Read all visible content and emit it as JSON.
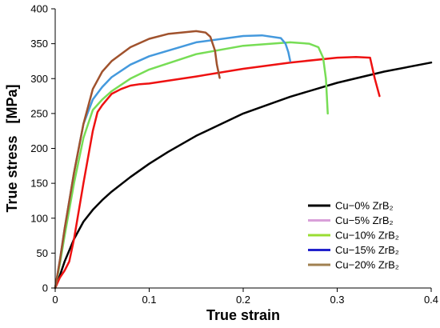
{
  "chart_data": {
    "type": "line",
    "title": "",
    "xlabel": "True strain",
    "ylabel": "True stress   [MPa]",
    "xlim": [
      0,
      0.4
    ],
    "ylim": [
      0,
      400
    ],
    "x_ticks": [
      0,
      0.1,
      0.2,
      0.3,
      0.4
    ],
    "x_tick_labels": [
      "0",
      "0.1",
      "0.2",
      "0.3",
      "0.4"
    ],
    "y_ticks": [
      0,
      50,
      100,
      150,
      200,
      250,
      300,
      350,
      400
    ],
    "y_tick_labels": [
      "0",
      "50",
      "100",
      "150",
      "200",
      "250",
      "300",
      "350",
      "400"
    ],
    "grid": false,
    "legend_position": "bottom-right",
    "series": [
      {
        "name": "Cu−0% ZrB₂",
        "color": "#000000",
        "legend_color": "#000000",
        "x": [
          0,
          0.005,
          0.01,
          0.02,
          0.03,
          0.04,
          0.05,
          0.06,
          0.08,
          0.1,
          0.12,
          0.15,
          0.2,
          0.25,
          0.3,
          0.35,
          0.4
        ],
        "y": [
          0,
          18,
          38,
          70,
          95,
          112,
          126,
          138,
          159,
          178,
          195,
          218,
          250,
          274,
          294,
          310,
          323
        ]
      },
      {
        "name": "Cu−5% ZrB₂",
        "color": "#ee1111",
        "legend_color": "#d9a0d9",
        "x": [
          0,
          0.005,
          0.01,
          0.015,
          0.02,
          0.03,
          0.04,
          0.045,
          0.05,
          0.06,
          0.07,
          0.08,
          0.09,
          0.1,
          0.15,
          0.2,
          0.25,
          0.3,
          0.32,
          0.335,
          0.34,
          0.345
        ],
        "y": [
          0,
          15,
          25,
          38,
          70,
          150,
          225,
          252,
          262,
          278,
          285,
          290,
          292,
          293,
          303,
          314,
          323,
          330,
          331,
          330,
          300,
          275
        ]
      },
      {
        "name": "Cu−10% ZrB₂",
        "color": "#77dd55",
        "legend_color": "#99dd33",
        "x": [
          0,
          0.005,
          0.01,
          0.02,
          0.03,
          0.04,
          0.05,
          0.06,
          0.08,
          0.1,
          0.15,
          0.2,
          0.25,
          0.27,
          0.28,
          0.285,
          0.288,
          0.29
        ],
        "y": [
          0,
          35,
          75,
          150,
          215,
          255,
          270,
          282,
          300,
          313,
          335,
          347,
          352,
          350,
          345,
          330,
          300,
          250
        ]
      },
      {
        "name": "Cu−15% ZrB₂",
        "color": "#4499dd",
        "legend_color": "#2222cc",
        "x": [
          0,
          0.005,
          0.01,
          0.02,
          0.03,
          0.04,
          0.05,
          0.06,
          0.08,
          0.1,
          0.15,
          0.2,
          0.22,
          0.24,
          0.245,
          0.248,
          0.25
        ],
        "y": [
          0,
          40,
          85,
          165,
          235,
          270,
          288,
          302,
          320,
          332,
          352,
          361,
          362,
          358,
          350,
          338,
          325
        ]
      },
      {
        "name": "Cu−20% ZrB₂",
        "color": "#a0522d",
        "legend_color": "#a08050",
        "x": [
          0,
          0.005,
          0.01,
          0.02,
          0.03,
          0.04,
          0.05,
          0.06,
          0.08,
          0.1,
          0.12,
          0.15,
          0.16,
          0.165,
          0.17,
          0.172,
          0.175
        ],
        "y": [
          0,
          40,
          85,
          165,
          235,
          285,
          310,
          325,
          345,
          357,
          364,
          368,
          366,
          360,
          340,
          320,
          301
        ]
      }
    ]
  }
}
